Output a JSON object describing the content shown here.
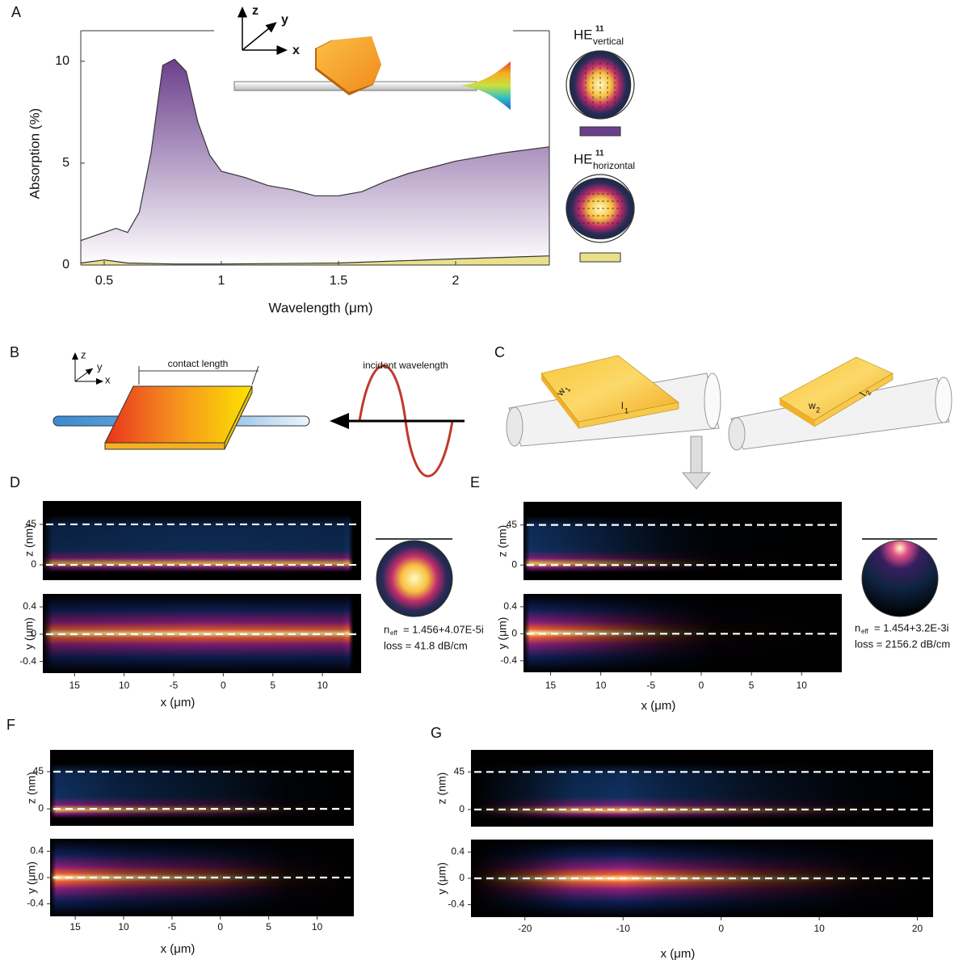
{
  "chart_data": [
    {
      "type": "area",
      "panel": "A",
      "xlabel": "Wavelength (μm)",
      "ylabel": "Absorption (%)",
      "xlim": [
        0.4,
        2.4
      ],
      "ylim": [
        0,
        11.5
      ],
      "xticks": [
        0.5,
        1,
        1.5,
        2
      ],
      "yticks": [
        0,
        5,
        10
      ],
      "inset_axes": [
        "z",
        "y",
        "x"
      ],
      "series": [
        {
          "name": "HE",
          "superscript": "11",
          "subscript": "vertical",
          "color": "#6b3f8c",
          "x": [
            0.4,
            0.5,
            0.55,
            0.6,
            0.65,
            0.7,
            0.75,
            0.8,
            0.85,
            0.9,
            0.95,
            1.0,
            1.1,
            1.2,
            1.3,
            1.4,
            1.5,
            1.6,
            1.7,
            1.8,
            1.9,
            2.0,
            2.2,
            2.4
          ],
          "values": [
            1.2,
            1.6,
            1.8,
            1.6,
            2.6,
            5.5,
            9.8,
            10.1,
            9.5,
            7.0,
            5.4,
            4.6,
            4.3,
            3.9,
            3.7,
            3.4,
            3.4,
            3.6,
            4.1,
            4.5,
            4.8,
            5.1,
            5.5,
            5.8
          ]
        },
        {
          "name": "HE",
          "superscript": "11",
          "subscript": "horizontal",
          "color": "#e9e08c",
          "x": [
            0.4,
            0.5,
            0.6,
            0.8,
            1.0,
            1.5,
            2.0,
            2.4
          ],
          "values": [
            0.1,
            0.25,
            0.1,
            0.05,
            0.05,
            0.1,
            0.3,
            0.45
          ]
        }
      ]
    },
    {
      "type": "heatmap",
      "panel": "D",
      "xlabel": "x (μm)",
      "xlim": [
        -18.2,
        13.9
      ],
      "xticks": [
        {
          "value": -15,
          "label": "15"
        },
        {
          "value": -10,
          "label": "10"
        },
        -5,
        0,
        5,
        10
      ],
      "subplots": [
        {
          "ylabel": "z (nm)",
          "ylim": [
            -17,
            71
          ],
          "yticks": [
            0,
            45
          ],
          "dashed_lines": [
            0,
            45
          ]
        },
        {
          "ylabel": "y (μm)",
          "ylim": [
            -0.57,
            0.59
          ],
          "yticks": [
            -0.4,
            0,
            0.4
          ],
          "dashed_lines": [
            0
          ]
        }
      ],
      "mode_annotation": {
        "n": "n",
        "sub": "eff",
        "value": "= 1.456+4.07E-5i",
        "loss": "loss = 41.8 dB/cm"
      }
    },
    {
      "type": "heatmap",
      "panel": "E",
      "xlabel": "x (μm)",
      "xlim": [
        -17.7,
        14.0
      ],
      "xticks": [
        {
          "value": -15,
          "label": "15"
        },
        {
          "value": -10,
          "label": "10"
        },
        -5,
        0,
        5,
        10
      ],
      "subplots": [
        {
          "ylabel": "z (nm)",
          "ylim": [
            -17,
            71
          ],
          "yticks": [
            0,
            45
          ],
          "dashed_lines": [
            0,
            45
          ]
        },
        {
          "ylabel": "y (μm)",
          "ylim": [
            -0.57,
            0.59
          ],
          "yticks": [
            -0.4,
            0,
            0.4
          ],
          "dashed_lines": [
            0
          ]
        }
      ],
      "mode_annotation": {
        "n": "n",
        "sub": "eff",
        "value": "= 1.454+3.2E-3i",
        "loss": "loss = 2156.2 dB/cm"
      }
    },
    {
      "type": "heatmap",
      "panel": "F",
      "xlabel": "x (μm)",
      "xlim": [
        -17.6,
        13.8
      ],
      "xticks": [
        {
          "value": -15,
          "label": "15"
        },
        {
          "value": -10,
          "label": "10"
        },
        -5,
        0,
        5,
        10
      ],
      "subplots": [
        {
          "ylabel": "z (nm)",
          "ylim": [
            -20.5,
            71.4
          ],
          "yticks": [
            0,
            45
          ],
          "dashed_lines": [
            0,
            45
          ]
        },
        {
          "ylabel": "y (μm)",
          "ylim": [
            -0.59,
            0.59
          ],
          "yticks": [
            -0.4,
            0,
            0.4
          ],
          "dashed_lines": [
            0
          ]
        }
      ]
    },
    {
      "type": "heatmap",
      "panel": "G",
      "xlabel": "x (μm)",
      "xlim": [
        -25.5,
        21.6
      ],
      "xticks": [
        -20,
        -10,
        0,
        10,
        20
      ],
      "subplots": [
        {
          "ylabel": "z (nm)",
          "ylim": [
            -20.5,
            71.4
          ],
          "yticks": [
            0,
            45
          ],
          "dashed_lines": [
            0,
            45
          ]
        },
        {
          "ylabel": "y (μm)",
          "ylim": [
            -0.59,
            0.59
          ],
          "yticks": [
            -0.4,
            0,
            0.4
          ],
          "dashed_lines": [
            0
          ]
        }
      ]
    }
  ],
  "diagrams": {
    "B": {
      "panel": "B",
      "axes": [
        "z",
        "y",
        "x"
      ],
      "contact_length": "contact length",
      "incident_wavelength": "incident wavelength"
    },
    "C": {
      "panel": "C",
      "labels": [
        {
          "text": "w",
          "sub": "1"
        },
        {
          "text": "l",
          "sub": "1"
        },
        {
          "text": "w",
          "sub": "2"
        },
        {
          "text": "l",
          "sub": "2"
        }
      ]
    }
  }
}
